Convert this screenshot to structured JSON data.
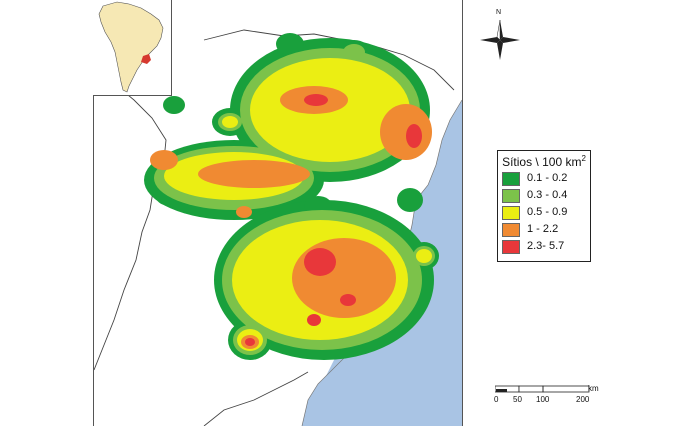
{
  "legend": {
    "title": "Sítios \\ 100 km",
    "title_sup": "2",
    "classes": [
      {
        "label": "0.1 - 0.2",
        "color": "#19a03c"
      },
      {
        "label": "0.3 - 0.4",
        "color": "#7cc24a"
      },
      {
        "label": "0.5 - 0.9",
        "color": "#ebee13"
      },
      {
        "label": "1 - 2.2",
        "color": "#f08a32"
      },
      {
        "label": "2.3- 5.7",
        "color": "#e8373a"
      }
    ]
  },
  "compass": {
    "north": "N"
  },
  "scale_bar": {
    "ticks": [
      "0",
      "50",
      "100",
      "200"
    ],
    "unit": "km"
  },
  "colors": {
    "ocean": "#a9c4e4",
    "land": "#ffffff",
    "inset_land": "#f6e8b4",
    "highlight": "#d6392f"
  }
}
